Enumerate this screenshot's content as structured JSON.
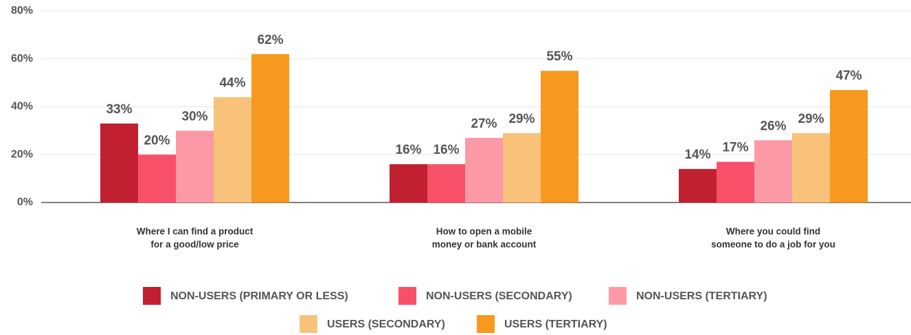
{
  "chart_data": {
    "type": "bar",
    "categories": [
      [
        "Where I can find a product",
        "for a good/low price"
      ],
      [
        "How to open a mobile",
        "money or bank account"
      ],
      [
        "Where you could find",
        "someone to do a job for you"
      ]
    ],
    "series": [
      {
        "name": "NON-USERS (PRIMARY OR LESS)",
        "color": "#c0202f",
        "values": [
          33,
          16,
          14
        ],
        "value_labels": [
          "33%",
          "16%",
          "14%"
        ]
      },
      {
        "name": "NON-USERS (SECONDARY)",
        "color": "#f9506a",
        "values": [
          20,
          16,
          17
        ],
        "value_labels": [
          "20%",
          "16%",
          "17%"
        ]
      },
      {
        "name": "NON-USERS (TERTIARY)",
        "color": "#fb9aa6",
        "values": [
          30,
          27,
          26
        ],
        "value_labels": [
          "30%",
          "27%",
          "26%"
        ]
      },
      {
        "name": "USERS (SECONDARY)",
        "color": "#f9c27a",
        "values": [
          44,
          29,
          29
        ],
        "value_labels": [
          "44%",
          "29%",
          "29%"
        ]
      },
      {
        "name": "USERS (TERTIARY)",
        "color": "#f7991e",
        "values": [
          62,
          55,
          47
        ],
        "value_labels": [
          "62%",
          "55%",
          "47%"
        ]
      }
    ],
    "ylim": [
      0,
      80
    ],
    "yticks": [
      {
        "value": 0,
        "label": "0%"
      },
      {
        "value": 20,
        "label": "20%"
      },
      {
        "value": 40,
        "label": "40%"
      },
      {
        "value": 60,
        "label": "60%"
      },
      {
        "value": 80,
        "label": "80%"
      }
    ],
    "grid": true
  }
}
